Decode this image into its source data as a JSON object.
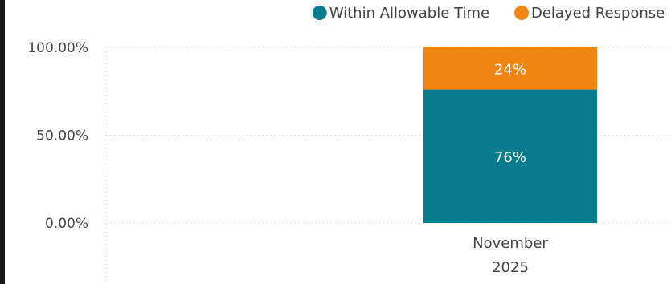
{
  "chart_data": {
    "type": "bar",
    "stacked": true,
    "categories": [
      [
        "November",
        "2025"
      ]
    ],
    "series": [
      {
        "name": "Within Allowable Time",
        "color": "#077c8f",
        "values": [
          76
        ],
        "data_labels": [
          "76%"
        ]
      },
      {
        "name": "Delayed Response",
        "color": "#f08511",
        "values": [
          24
        ],
        "data_labels": [
          "24%"
        ]
      }
    ],
    "y_ticks": [
      "100.00%",
      "50.00%",
      "0.00%"
    ],
    "ylim": [
      0,
      100
    ],
    "grid": true,
    "legend_position": "top-right",
    "xlabel": "",
    "ylabel": "",
    "title": ""
  }
}
